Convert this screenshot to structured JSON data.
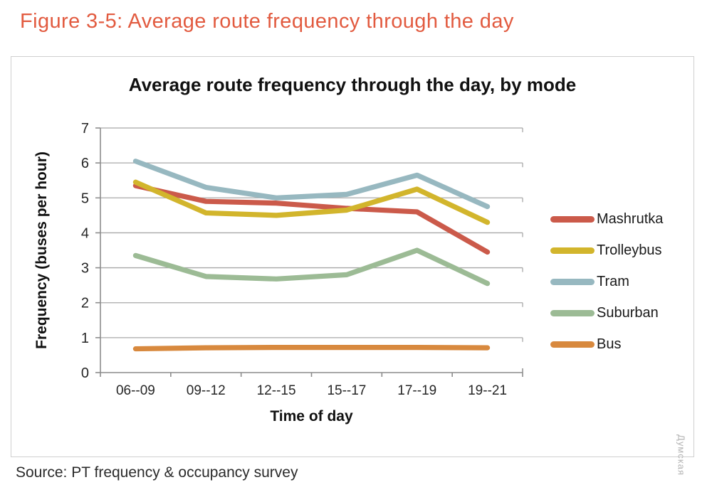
{
  "figure": {
    "title": "Figure 3-5: Average route frequency through the day",
    "title_color": "#e25b40"
  },
  "source": {
    "text": "Source: PT frequency & occupancy survey"
  },
  "watermark": {
    "text": "Думская"
  },
  "chart_data": {
    "type": "line",
    "title": "Average route frequency through the day, by mode",
    "xlabel": "Time of day",
    "ylabel": "Frequency (buses per hour)",
    "categories": [
      "06--09",
      "09--12",
      "12--15",
      "15--17",
      "17--19",
      "19--21"
    ],
    "series": [
      {
        "name": "Mashrutka",
        "color": "#cb5a4a",
        "values": [
          5.35,
          4.9,
          4.85,
          4.7,
          4.6,
          3.45
        ]
      },
      {
        "name": "Trolleybus",
        "color": "#d2b52c",
        "values": [
          5.45,
          4.57,
          4.5,
          4.65,
          5.25,
          4.3
        ]
      },
      {
        "name": "Tram",
        "color": "#97b8c0",
        "values": [
          6.05,
          5.3,
          5.0,
          5.1,
          5.65,
          4.75
        ]
      },
      {
        "name": "Suburban",
        "color": "#9cbb95",
        "values": [
          3.35,
          2.75,
          2.68,
          2.8,
          3.5,
          2.55
        ]
      },
      {
        "name": "Bus",
        "color": "#d8893e",
        "values": [
          0.68,
          0.71,
          0.72,
          0.72,
          0.72,
          0.71
        ]
      }
    ],
    "ylim": [
      0,
      7
    ],
    "ytick_step": 1,
    "grid": true,
    "legend_position": "right",
    "grid_color": "#a8a8a8",
    "axis_color": "#8c8c8c",
    "text_color": "#262626"
  }
}
